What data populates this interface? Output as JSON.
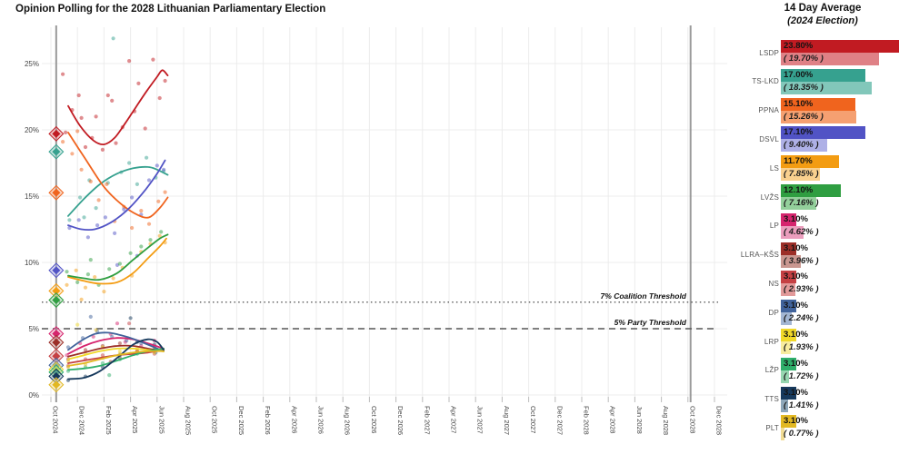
{
  "title": "Opinion Polling for the 2028 Lithuanian Parliamentary Election",
  "legend": {
    "header_line1": "14 Day Average",
    "header_line2": "(2024 Election)"
  },
  "chart_data": {
    "type": "line+scatter",
    "title": "Opinion Polling for the 2028 Lithuanian Parliamentary Election",
    "xlabel": "",
    "ylabel": "",
    "x_tick_labels": [
      "Oct 2024",
      "Dec 2024",
      "Feb 2025",
      "Apr 2025",
      "Jun 2025",
      "Aug 2025",
      "Oct 2025",
      "Dec 2025",
      "Feb 2026",
      "Apr 2026",
      "Jun 2026",
      "Aug 2026",
      "Oct 2026",
      "Dec 2026",
      "Feb 2027",
      "Apr 2027",
      "Jun 2027",
      "Aug 2027",
      "Oct 2027",
      "Dec 2027",
      "Feb 2028",
      "Apr 2028",
      "Jun 2028",
      "Aug 2028",
      "Oct 2028",
      "Dec 2028"
    ],
    "y_tick_labels": [
      "0%",
      "5%",
      "10%",
      "15%",
      "20%",
      "25%"
    ],
    "y_ticks_pct": [
      0,
      5,
      10,
      15,
      20,
      25
    ],
    "grid": true,
    "legend_position": "right",
    "election_lines_months": [
      0.4,
      48.2
    ],
    "thresholds": [
      {
        "pct": 7,
        "style": "dotted",
        "label": "7% Coalition Threshold"
      },
      {
        "pct": 5,
        "style": "dashed",
        "label": "5% Party Threshold"
      }
    ],
    "parties": [
      {
        "name": "LSDP",
        "color": "#c11b22",
        "light": "#df8186",
        "avg": 23.8,
        "avg_label": "23.80%",
        "prev": 19.7,
        "prev_label": "( 19.70% )",
        "trend": [
          [
            1.3,
            21.8
          ],
          [
            2.2,
            20.3
          ],
          [
            3.2,
            19.2
          ],
          [
            4.0,
            18.9
          ],
          [
            4.8,
            19.4
          ],
          [
            5.6,
            20.5
          ],
          [
            6.4,
            21.7
          ],
          [
            7.2,
            22.9
          ],
          [
            8.0,
            24.0
          ],
          [
            8.4,
            24.5
          ],
          [
            8.8,
            24.1
          ]
        ],
        "scatter": [
          [
            0.9,
            24.2
          ],
          [
            1.1,
            19.8
          ],
          [
            1.6,
            21.5
          ],
          [
            2.1,
            22.6
          ],
          [
            2.3,
            20.9
          ],
          [
            2.6,
            18.7
          ],
          [
            3.1,
            19.4
          ],
          [
            3.4,
            21.0
          ],
          [
            3.9,
            18.5
          ],
          [
            4.3,
            22.6
          ],
          [
            4.6,
            22.2
          ],
          [
            4.9,
            19.0
          ],
          [
            5.4,
            20.2
          ],
          [
            5.9,
            25.2
          ],
          [
            6.3,
            21.4
          ],
          [
            6.6,
            23.5
          ],
          [
            7.1,
            20.1
          ],
          [
            7.7,
            25.3
          ],
          [
            8.2,
            22.4
          ],
          [
            8.6,
            23.7
          ]
        ]
      },
      {
        "name": "TS-LKD",
        "color": "#36a18f",
        "light": "#82c7ba",
        "avg": 17.0,
        "avg_label": "17.00%",
        "prev": 18.35,
        "prev_label": "( 18.35% )",
        "trend": [
          [
            1.3,
            13.5
          ],
          [
            2.5,
            14.8
          ],
          [
            3.7,
            15.9
          ],
          [
            5.0,
            16.7
          ],
          [
            6.2,
            17.1
          ],
          [
            7.3,
            17.2
          ],
          [
            8.0,
            17.0
          ],
          [
            8.8,
            16.6
          ]
        ],
        "scatter": [
          [
            1.4,
            13.2
          ],
          [
            2.2,
            14.9
          ],
          [
            2.5,
            13.4
          ],
          [
            2.9,
            16.2
          ],
          [
            3.4,
            14.1
          ],
          [
            4.3,
            16.0
          ],
          [
            4.7,
            26.9
          ],
          [
            5.3,
            16.8
          ],
          [
            5.9,
            17.5
          ],
          [
            6.5,
            15.9
          ],
          [
            7.2,
            17.9
          ],
          [
            7.9,
            16.4
          ],
          [
            8.5,
            16.9
          ]
        ]
      },
      {
        "name": "PPNA",
        "color": "#f0641e",
        "light": "#f5a071",
        "avg": 15.1,
        "avg_label": "15.10%",
        "prev": 15.26,
        "prev_label": "( 15.26% )",
        "trend": [
          [
            1.3,
            19.8
          ],
          [
            2.6,
            17.8
          ],
          [
            4.0,
            15.7
          ],
          [
            5.3,
            14.4
          ],
          [
            6.5,
            13.6
          ],
          [
            7.4,
            13.4
          ],
          [
            8.2,
            14.1
          ],
          [
            8.8,
            14.9
          ]
        ],
        "scatter": [
          [
            0.9,
            19.1
          ],
          [
            1.6,
            18.2
          ],
          [
            2.0,
            19.9
          ],
          [
            2.3,
            17.0
          ],
          [
            3.0,
            16.1
          ],
          [
            3.6,
            14.7
          ],
          [
            4.2,
            15.9
          ],
          [
            4.8,
            13.1
          ],
          [
            5.5,
            14.2
          ],
          [
            6.1,
            12.6
          ],
          [
            6.8,
            13.9
          ],
          [
            7.4,
            12.9
          ],
          [
            8.1,
            14.6
          ],
          [
            8.6,
            15.3
          ]
        ]
      },
      {
        "name": "DSVL",
        "color": "#5153c5",
        "light": "#aeb0e6",
        "avg": 17.1,
        "avg_label": "17.10%",
        "prev": 9.4,
        "prev_label": "( 9.40% )",
        "trend": [
          [
            1.3,
            12.8
          ],
          [
            2.3,
            12.5
          ],
          [
            3.3,
            12.5
          ],
          [
            4.5,
            13.0
          ],
          [
            5.7,
            13.9
          ],
          [
            6.9,
            15.2
          ],
          [
            8.0,
            16.7
          ],
          [
            8.6,
            17.7
          ]
        ],
        "scatter": [
          [
            1.4,
            12.6
          ],
          [
            2.1,
            13.2
          ],
          [
            2.8,
            11.9
          ],
          [
            3.5,
            12.8
          ],
          [
            4.1,
            13.4
          ],
          [
            4.8,
            12.2
          ],
          [
            5.0,
            9.8
          ],
          [
            5.5,
            14.0
          ],
          [
            6.1,
            14.9
          ],
          [
            6.5,
            10.5
          ],
          [
            6.8,
            13.6
          ],
          [
            7.4,
            16.2
          ],
          [
            8.0,
            17.3
          ],
          [
            8.5,
            17.0
          ]
        ]
      },
      {
        "name": "LS",
        "color": "#f39c12",
        "light": "#f9d08e",
        "avg": 11.7,
        "avg_label": "11.70%",
        "prev": 7.85,
        "prev_label": "( 7.85% )",
        "trend": [
          [
            1.3,
            8.9
          ],
          [
            2.5,
            8.6
          ],
          [
            3.7,
            8.4
          ],
          [
            5.0,
            8.5
          ],
          [
            6.2,
            9.2
          ],
          [
            7.3,
            10.3
          ],
          [
            8.2,
            11.2
          ],
          [
            8.7,
            11.8
          ]
        ],
        "scatter": [
          [
            1.2,
            8.3
          ],
          [
            1.9,
            9.4
          ],
          [
            2.3,
            7.2
          ],
          [
            2.6,
            8.1
          ],
          [
            3.3,
            8.9
          ],
          [
            4.0,
            7.8
          ],
          [
            4.7,
            8.8
          ],
          [
            5.4,
            9.6
          ],
          [
            6.1,
            9.0
          ],
          [
            6.8,
            10.8
          ],
          [
            7.5,
            11.4
          ],
          [
            8.2,
            12.0
          ],
          [
            8.6,
            11.5
          ]
        ]
      },
      {
        "name": "LVŽS",
        "color": "#2f9e41",
        "light": "#93cf9b",
        "avg": 12.1,
        "avg_label": "12.10%",
        "prev": 7.16,
        "prev_label": "( 7.16% )",
        "trend": [
          [
            1.3,
            9.0
          ],
          [
            2.5,
            8.8
          ],
          [
            3.7,
            8.7
          ],
          [
            5.0,
            9.2
          ],
          [
            6.2,
            10.2
          ],
          [
            7.3,
            11.1
          ],
          [
            8.2,
            11.8
          ],
          [
            8.8,
            12.1
          ]
        ],
        "scatter": [
          [
            1.2,
            9.3
          ],
          [
            2.0,
            8.5
          ],
          [
            2.8,
            9.1
          ],
          [
            3.0,
            10.2
          ],
          [
            3.6,
            8.3
          ],
          [
            4.4,
            9.5
          ],
          [
            5.2,
            9.9
          ],
          [
            6.0,
            10.7
          ],
          [
            6.8,
            11.2
          ],
          [
            7.5,
            11.7
          ],
          [
            8.3,
            12.3
          ]
        ]
      },
      {
        "name": "LP",
        "color": "#d6246e",
        "light": "#eb9dbd",
        "avg": 3.1,
        "avg_label": "3.10%",
        "prev": 4.62,
        "prev_label": "( 4.62% )",
        "trend": [
          [
            1.3,
            3.1
          ],
          [
            2.5,
            3.7
          ],
          [
            3.7,
            4.1
          ],
          [
            5.0,
            4.3
          ],
          [
            6.2,
            4.2
          ],
          [
            7.3,
            3.9
          ],
          [
            8.5,
            3.5
          ]
        ],
        "scatter": [
          [
            1.2,
            3.0
          ],
          [
            2.2,
            3.9
          ],
          [
            3.2,
            4.4
          ],
          [
            4.5,
            4.6
          ],
          [
            5.0,
            5.4
          ],
          [
            5.6,
            4.0
          ],
          [
            6.8,
            3.7
          ],
          [
            7.8,
            4.1
          ],
          [
            8.4,
            3.4
          ]
        ]
      },
      {
        "name": "LLRA–KŠS",
        "color": "#9c2f28",
        "light": "#c99790",
        "avg": 3.1,
        "avg_label": "3.10%",
        "prev": 3.96,
        "prev_label": "( 3.96% )",
        "trend": [
          [
            1.3,
            2.9
          ],
          [
            2.5,
            3.2
          ],
          [
            3.7,
            3.5
          ],
          [
            5.0,
            3.7
          ],
          [
            6.2,
            3.7
          ],
          [
            7.3,
            3.5
          ],
          [
            8.5,
            3.3
          ]
        ],
        "scatter": [
          [
            1.3,
            2.7
          ],
          [
            2.6,
            3.4
          ],
          [
            3.9,
            3.7
          ],
          [
            4.5,
            2.5
          ],
          [
            5.2,
            3.9
          ],
          [
            6.5,
            3.3
          ],
          [
            7.8,
            3.6
          ]
        ]
      },
      {
        "name": "NS",
        "color": "#c54043",
        "light": "#e29a9a",
        "avg": 3.1,
        "avg_label": "3.10%",
        "prev": 2.93,
        "prev_label": "( 2.93% )",
        "trend": [
          [
            1.3,
            2.4
          ],
          [
            2.5,
            2.6
          ],
          [
            3.7,
            2.8
          ],
          [
            5.0,
            3.0
          ],
          [
            6.2,
            3.1
          ],
          [
            7.3,
            3.2
          ],
          [
            8.5,
            3.4
          ]
        ],
        "scatter": [
          [
            1.3,
            2.2
          ],
          [
            2.6,
            2.7
          ],
          [
            3.9,
            3.0
          ],
          [
            5.2,
            2.8
          ],
          [
            5.9,
            5.4
          ],
          [
            6.5,
            3.3
          ],
          [
            7.8,
            3.1
          ]
        ]
      },
      {
        "name": "DP",
        "color": "#41639b",
        "light": "#a3b6d3",
        "avg": 3.1,
        "avg_label": "3.10%",
        "prev": 2.24,
        "prev_label": "( 2.24% )",
        "trend": [
          [
            1.3,
            3.4
          ],
          [
            2.3,
            4.1
          ],
          [
            3.3,
            4.6
          ],
          [
            4.3,
            4.7
          ],
          [
            5.3,
            4.5
          ],
          [
            6.3,
            4.2
          ],
          [
            7.3,
            3.8
          ],
          [
            8.5,
            3.3
          ]
        ],
        "scatter": [
          [
            1.3,
            3.6
          ],
          [
            2.4,
            4.3
          ],
          [
            3.0,
            5.9
          ],
          [
            3.5,
            4.8
          ],
          [
            4.6,
            4.4
          ],
          [
            5.7,
            4.1
          ],
          [
            6.8,
            3.9
          ],
          [
            7.9,
            3.2
          ]
        ]
      },
      {
        "name": "LRP",
        "color": "#f0d829",
        "light": "#f8ec9e",
        "avg": 3.1,
        "avg_label": "3.10%",
        "prev": 1.93,
        "prev_label": "( 1.93% )",
        "trend": [
          [
            1.3,
            2.7
          ],
          [
            2.5,
            3.0
          ],
          [
            3.7,
            3.3
          ],
          [
            5.0,
            3.5
          ],
          [
            6.2,
            3.5
          ],
          [
            7.3,
            3.4
          ],
          [
            8.5,
            3.3
          ]
        ],
        "scatter": [
          [
            1.3,
            2.5
          ],
          [
            2.0,
            5.3
          ],
          [
            2.6,
            3.1
          ],
          [
            3.9,
            3.6
          ],
          [
            5.2,
            3.3
          ],
          [
            6.5,
            3.5
          ],
          [
            7.8,
            3.2
          ]
        ]
      },
      {
        "name": "LŽP",
        "color": "#2fae6a",
        "light": "#96d6b0",
        "avg": 3.1,
        "avg_label": "3.10%",
        "prev": 1.72,
        "prev_label": "( 1.72% )",
        "trend": [
          [
            1.3,
            1.9
          ],
          [
            2.5,
            2.0
          ],
          [
            3.7,
            2.2
          ],
          [
            5.0,
            2.6
          ],
          [
            6.2,
            3.0
          ],
          [
            7.3,
            3.3
          ],
          [
            8.5,
            3.5
          ]
        ],
        "scatter": [
          [
            1.3,
            1.8
          ],
          [
            2.6,
            2.1
          ],
          [
            3.9,
            2.4
          ],
          [
            4.4,
            1.5
          ],
          [
            5.2,
            2.7
          ],
          [
            6.5,
            3.1
          ],
          [
            7.8,
            3.4
          ]
        ]
      },
      {
        "name": "TTS",
        "color": "#16395c",
        "light": "#8ea7ba",
        "avg": 3.1,
        "avg_label": "3.10%",
        "prev": 1.41,
        "prev_label": "( 1.41% )",
        "trend": [
          [
            1.3,
            1.2
          ],
          [
            2.5,
            1.3
          ],
          [
            3.7,
            1.8
          ],
          [
            5.0,
            2.8
          ],
          [
            6.2,
            3.8
          ],
          [
            7.3,
            4.2
          ],
          [
            8.0,
            4.0
          ],
          [
            8.5,
            3.4
          ]
        ],
        "scatter": [
          [
            1.3,
            1.1
          ],
          [
            2.6,
            1.4
          ],
          [
            3.9,
            2.1
          ],
          [
            5.2,
            3.0
          ],
          [
            6.0,
            5.8
          ],
          [
            6.5,
            4.0
          ],
          [
            7.8,
            3.8
          ]
        ]
      },
      {
        "name": "PLT",
        "color": "#e2b822",
        "light": "#f1dc94",
        "avg": 3.1,
        "avg_label": "3.10%",
        "prev": 0.77,
        "prev_label": "( 0.77% )",
        "trend": [
          [
            1.3,
            2.2
          ],
          [
            2.5,
            2.4
          ],
          [
            3.7,
            2.7
          ],
          [
            5.0,
            3.0
          ],
          [
            6.2,
            3.2
          ],
          [
            7.3,
            3.3
          ],
          [
            8.5,
            3.3
          ]
        ],
        "scatter": [
          [
            1.3,
            2.1
          ],
          [
            2.6,
            2.3
          ],
          [
            3.4,
            4.9
          ],
          [
            3.9,
            2.8
          ],
          [
            5.2,
            3.1
          ],
          [
            6.5,
            3.2
          ],
          [
            7.8,
            3.3
          ]
        ]
      }
    ]
  }
}
